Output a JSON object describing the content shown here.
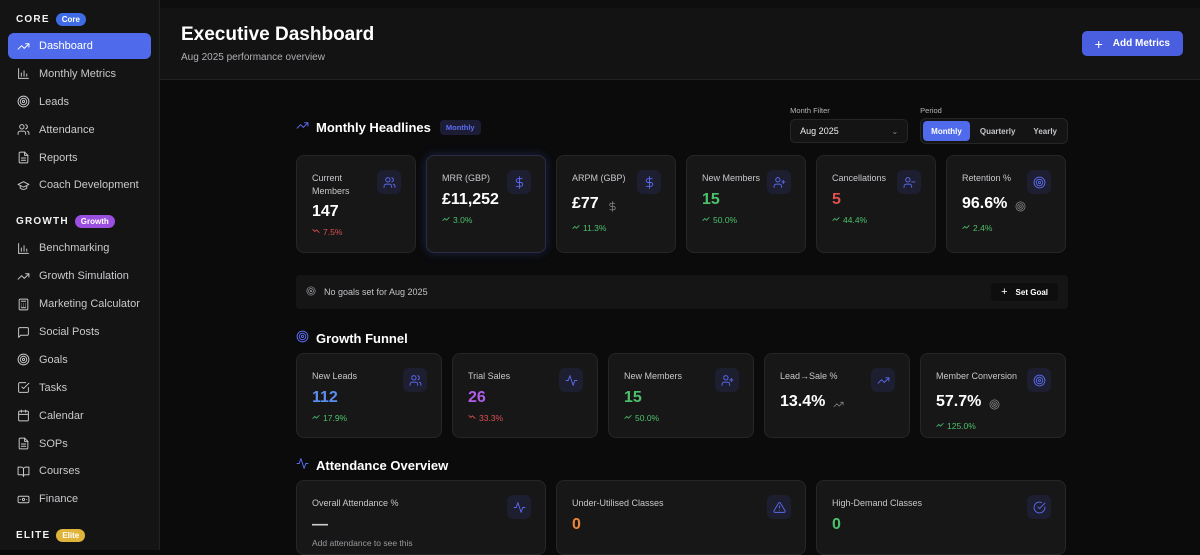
{
  "sidebar": {
    "groups": [
      {
        "title": "CORE",
        "badge": "Core",
        "badge_color": "#3f6ce6",
        "items": [
          {
            "label": "Dashboard",
            "icon": "trending-up-icon",
            "active": true
          },
          {
            "label": "Monthly Metrics",
            "icon": "bar-chart-icon"
          },
          {
            "label": "Leads",
            "icon": "target-icon"
          },
          {
            "label": "Attendance",
            "icon": "users-icon"
          },
          {
            "label": "Reports",
            "icon": "file-text-icon"
          },
          {
            "label": "Coach Development",
            "icon": "graduation-cap-icon"
          }
        ]
      },
      {
        "title": "GROWTH",
        "badge": "Growth",
        "badge_color": "#9b4fe0",
        "items": [
          {
            "label": "Benchmarking",
            "icon": "bar-chart-icon"
          },
          {
            "label": "Growth Simulation",
            "icon": "trending-up-icon"
          },
          {
            "label": "Marketing Calculator",
            "icon": "calculator-icon"
          },
          {
            "label": "Social Posts",
            "icon": "message-square-icon"
          },
          {
            "label": "Goals",
            "icon": "target-icon"
          },
          {
            "label": "Tasks",
            "icon": "check-square-icon"
          },
          {
            "label": "Calendar",
            "icon": "calendar-icon"
          },
          {
            "label": "SOPs",
            "icon": "file-text-icon"
          },
          {
            "label": "Courses",
            "icon": "book-open-icon"
          },
          {
            "label": "Finance",
            "icon": "banknote-icon"
          }
        ]
      },
      {
        "title": "ELITE",
        "badge": "Elite",
        "badge_color": "#e0b43a",
        "items": []
      }
    ]
  },
  "header": {
    "title": "Executive Dashboard",
    "subtitle": "Aug 2025 performance overview",
    "add_button": "Add Metrics"
  },
  "headlines": {
    "title": "Monthly Headlines",
    "pill": "Monthly",
    "month_filter_label": "Month Filter",
    "month_value": "Aug 2025",
    "period_label": "Period",
    "period_options": [
      "Monthly",
      "Quarterly",
      "Yearly"
    ],
    "period_selected": "Monthly",
    "cards": [
      {
        "label": "Current Members",
        "value": "147",
        "change": "7.5%",
        "trend": "down",
        "icon": "users-icon",
        "value_color": "#ffffff"
      },
      {
        "label": "MRR (GBP)",
        "value": "£11,252",
        "change": "3.0%",
        "trend": "up",
        "icon": "dollar-icon",
        "value_color": "#ffffff"
      },
      {
        "label": "ARPM (GBP)",
        "value": "£77",
        "change": "11.3%",
        "trend": "up",
        "icon": "dollar-icon",
        "value_color": "#ffffff",
        "extra_icon": "dollar-icon"
      },
      {
        "label": "New Members",
        "value": "15",
        "change": "50.0%",
        "trend": "up",
        "icon": "user-plus-icon",
        "value_color": "#4cc16a"
      },
      {
        "label": "Cancellations",
        "value": "5",
        "change": "44.4%",
        "trend": "up",
        "icon": "user-minus-icon",
        "value_color": "#e05050"
      },
      {
        "label": "Retention %",
        "value": "96.6%",
        "change": "2.4%",
        "trend": "up",
        "icon": "target-icon",
        "value_color": "#ffffff",
        "extra_icon": "target-icon"
      }
    ],
    "goal_text": "No goals set for Aug 2025",
    "set_goal": "Set Goal"
  },
  "funnel": {
    "title": "Growth Funnel",
    "cards": [
      {
        "label": "New Leads",
        "value": "112",
        "change": "17.9%",
        "trend": "up",
        "icon": "users-icon",
        "value_color": "#5b8ef0"
      },
      {
        "label": "Trial Sales",
        "value": "26",
        "change": "33.3%",
        "trend": "down",
        "icon": "activity-icon",
        "value_color": "#b05de8"
      },
      {
        "label": "New Members",
        "value": "15",
        "change": "50.0%",
        "trend": "up",
        "icon": "user-plus-icon",
        "value_color": "#4cc16a"
      },
      {
        "label": "Lead→Sale %",
        "value": "13.4%",
        "change": "",
        "trend": "none",
        "icon": "trending-up-icon",
        "value_color": "#ffffff",
        "extra_icon": "trending-up-icon"
      },
      {
        "label": "Member Conversion",
        "value": "57.7%",
        "change": "125.0%",
        "trend": "up",
        "icon": "target-icon",
        "value_color": "#ffffff",
        "extra_icon": "target-icon"
      }
    ]
  },
  "attendance": {
    "title": "Attendance Overview",
    "cards": [
      {
        "label": "Overall Attendance %",
        "value": "—",
        "note": "Add attendance to see this",
        "icon": "activity-icon",
        "value_color": "#cfcfd2"
      },
      {
        "label": "Under-Utilised Classes",
        "value": "0",
        "icon": "alert-triangle-icon",
        "value_color": "#e8873a"
      },
      {
        "label": "High-Demand Classes",
        "value": "0",
        "icon": "check-circle-icon",
        "value_color": "#4cc16a"
      }
    ]
  }
}
